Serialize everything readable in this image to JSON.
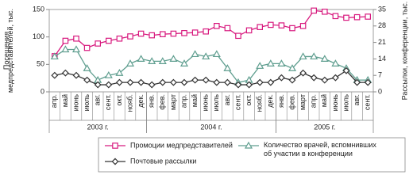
{
  "chart_data": {
    "type": "line",
    "y_label": "Посещения медпредставителей, тыс.",
    "y2_label": "Рассылки, конференции, тыс.",
    "groups": [
      {
        "label": "2003 г.",
        "categories": [
          "апр.",
          "май",
          "июнь",
          "июль",
          "авг.",
          "сент.",
          "окт.",
          "нояб.",
          "дек."
        ]
      },
      {
        "label": "2004 г.",
        "categories": [
          "янв.",
          "фев.",
          "март",
          "апр.",
          "май",
          "июнь",
          "июль",
          "авг.",
          "сент.",
          "окт.",
          "нояб.",
          "дек."
        ]
      },
      {
        "label": "2005 г.",
        "categories": [
          "янв.",
          "фев.",
          "март",
          "апр.",
          "май",
          "июнь",
          "июль",
          "авг.",
          "сент."
        ]
      }
    ],
    "ylim": [
      0,
      150
    ],
    "yticks": [
      0,
      50,
      100,
      150
    ],
    "y2lim": [
      0,
      35
    ],
    "y2ticks": [
      0,
      7,
      14,
      21,
      28,
      35
    ],
    "series": [
      {
        "name": "Промоции медпредставителей",
        "color": "#d81b7f",
        "marker": "square",
        "values": [
          65,
          93,
          97,
          80,
          88,
          93,
          97,
          101,
          106,
          103,
          105,
          106,
          107,
          108,
          110,
          120,
          116,
          102,
          112,
          118,
          122,
          121,
          116,
          120,
          148,
          146,
          138,
          135,
          136,
          137
        ]
      },
      {
        "name": "Количество врачей, вспомнивших об участии в конференции",
        "color": "#5f9e8f",
        "marker": "triangle",
        "axis": "y2",
        "values": [
          15,
          18,
          18,
          10,
          5,
          7,
          8,
          12,
          14,
          13,
          13,
          14,
          12,
          16,
          15,
          16,
          10,
          4,
          5,
          11,
          12,
          12,
          10,
          15,
          15,
          14,
          12,
          10,
          5,
          5
        ]
      },
      {
        "name": "Почтовые рассылки",
        "color": "#333333",
        "marker": "diamond",
        "axis": "y2",
        "values": [
          7,
          8,
          7,
          5,
          3,
          3,
          4,
          4,
          4,
          3,
          4,
          4,
          4,
          5,
          5,
          4,
          4,
          3,
          3,
          4,
          4,
          6,
          5,
          8,
          6,
          5,
          6,
          9,
          4,
          4
        ]
      }
    ]
  }
}
